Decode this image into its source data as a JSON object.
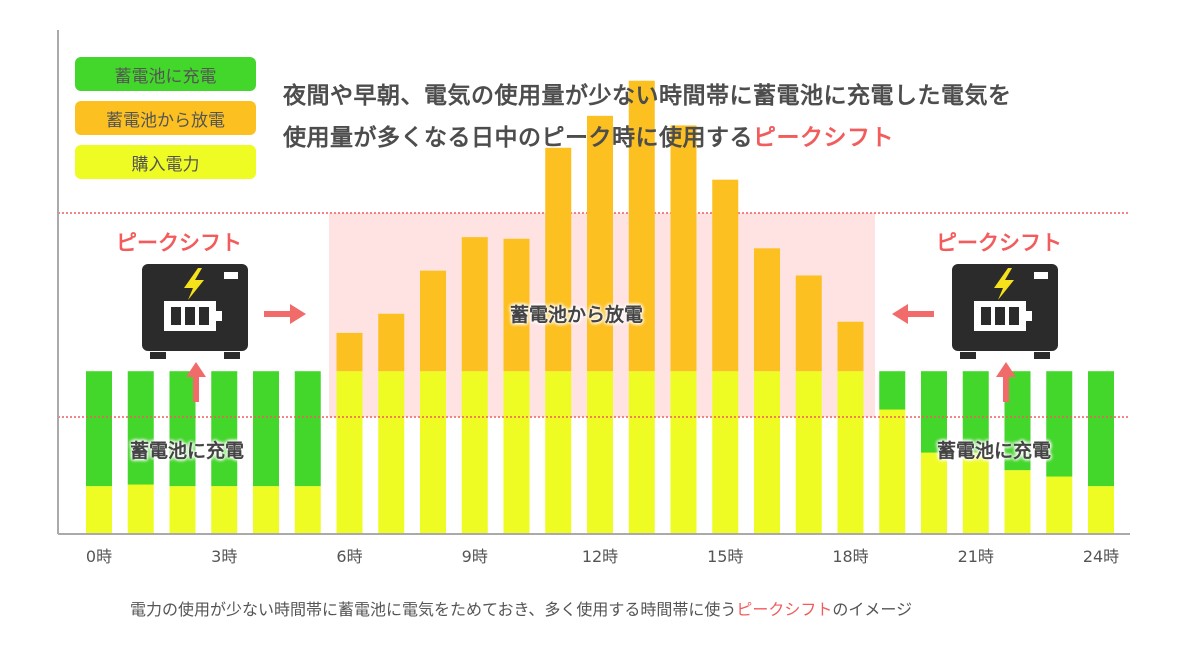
{
  "legend": {
    "charge": "蓄電池に充電",
    "discharge": "蓄電池から放電",
    "purchase": "購入電力"
  },
  "headline": {
    "line1": "夜間や早朝、電気の使用量が少ない時間帯に蓄電池に充電した電気を",
    "line2_prefix": "使用量が多くなる日中のピーク時に使用する",
    "line2_accent": "ピークシフト"
  },
  "annotations": {
    "left_peak_shift": "ピークシフト",
    "right_peak_shift": "ピークシフト",
    "discharge_region": "蓄電池から放電",
    "left_charge": "蓄電池に充電",
    "right_charge": "蓄電池に充電"
  },
  "caption": {
    "prefix": "電力の使用が少ない時間帯に蓄電池に電気をためておき、多く使用する時間帯に使う",
    "accent": "ピークシフト",
    "suffix": "のイメージ"
  },
  "colors": {
    "charge": "#43d62b",
    "discharge": "#fcc020",
    "purchase": "#eefc23",
    "discharge_band": "#ffe3e3",
    "accent": "#f25c5c",
    "battery": "#2b2b2b",
    "bolt": "#f5e21b"
  },
  "icons": [
    "battery-icon",
    "arrow-right-icon",
    "arrow-up-icon",
    "arrow-left-icon"
  ],
  "chart_data": {
    "type": "bar",
    "stacked": true,
    "x_tick_labels": [
      "0時",
      "3時",
      "6時",
      "9時",
      "12時",
      "15時",
      "18時",
      "21時",
      "24時"
    ],
    "x_tick_hours": [
      0,
      3,
      6,
      9,
      12,
      15,
      18,
      21,
      24
    ],
    "hours": [
      0,
      1,
      2,
      3,
      4,
      5,
      6,
      7,
      8,
      9,
      10,
      11,
      12,
      13,
      14,
      15,
      16,
      17,
      18,
      19,
      20,
      21,
      22,
      23,
      24
    ],
    "series": [
      {
        "name": "購入電力",
        "values": [
          3.0,
          3.1,
          3.0,
          3.0,
          3.0,
          3.0,
          10.2,
          10.2,
          10.2,
          10.2,
          10.2,
          10.2,
          10.2,
          10.2,
          10.2,
          10.2,
          10.2,
          10.2,
          10.2,
          7.8,
          5.1,
          5.1,
          4.0,
          3.6,
          3.0
        ]
      },
      {
        "name": "蓄電池に充電",
        "values": [
          7.2,
          7.1,
          7.2,
          7.2,
          7.2,
          7.2,
          0,
          0,
          0,
          0,
          0,
          0,
          0,
          0,
          0,
          0,
          0,
          0,
          0,
          2.4,
          5.1,
          5.1,
          6.2,
          6.6,
          7.2
        ]
      },
      {
        "name": "蓄電池から放電",
        "values": [
          0,
          0,
          0,
          0,
          0,
          0,
          2.4,
          3.6,
          6.3,
          8.4,
          8.3,
          14.0,
          16.0,
          18.2,
          15.4,
          12.0,
          7.7,
          6.0,
          3.1,
          0,
          0,
          0,
          0,
          0,
          0
        ]
      }
    ]
  }
}
